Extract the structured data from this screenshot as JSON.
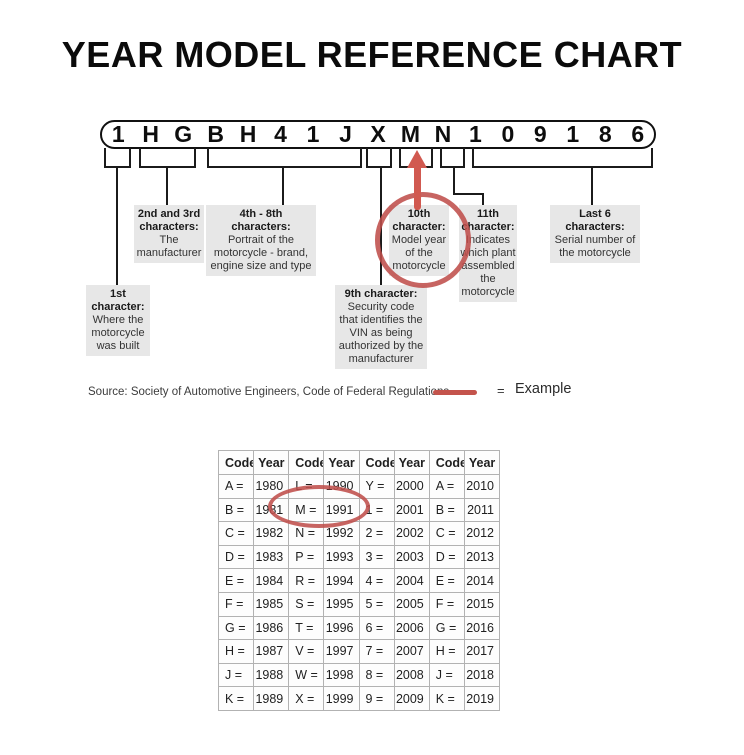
{
  "title": "YEAR MODEL REFERENCE CHART",
  "vin": {
    "chars": [
      "1",
      "H",
      "G",
      "B",
      "H",
      "4",
      "1",
      "J",
      "X",
      "M",
      "N",
      "1",
      "0",
      "9",
      "1",
      "8",
      "6"
    ]
  },
  "callouts": [
    {
      "id": "first-character",
      "heading": "1st\ncharacter:",
      "body": "Where the\nmotorcycle\nwas built"
    },
    {
      "id": "second-third",
      "heading": "2nd and 3rd\ncharacters:",
      "body": "The\nmanufacturer"
    },
    {
      "id": "fourth-eighth",
      "heading": "4th - 8th\ncharacters:",
      "body": "Portrait of the\nmotorcycle - brand,\nengine size and type"
    },
    {
      "id": "ninth-character",
      "heading": "9th character:",
      "body": "Security code\nthat identifies the\nVIN as being\nauthorized by the\nmanufacturer"
    },
    {
      "id": "tenth-character",
      "heading": "10th\ncharacter:",
      "body": "Model year\nof the\nmotorcycle"
    },
    {
      "id": "eleventh-character",
      "heading": "11th\ncharacter:",
      "body": "Indicates\nwhich plant\nassembled\nthe\nmotorcycle"
    },
    {
      "id": "last-six",
      "heading": "Last 6\ncharacters:",
      "body": "Serial number of\nthe motorcycle"
    }
  ],
  "source": "Source:  Society of Automotive Engineers, Code of Federal Regulations",
  "legend": {
    "marker": "red-line-icon",
    "equals_sign": "=",
    "label": "Example"
  },
  "year_table": {
    "headers": [
      "Code",
      "Year",
      "Code",
      "Year",
      "Code",
      "Year",
      "Code",
      "Year"
    ],
    "rows": [
      [
        "A =",
        "1980",
        "L =",
        "1990",
        "Y =",
        "2000",
        "A =",
        "2010"
      ],
      [
        "B =",
        "1981",
        "M =",
        "1991",
        "1 =",
        "2001",
        "B =",
        "2011"
      ],
      [
        "C =",
        "1982",
        "N =",
        "1992",
        "2 =",
        "2002",
        "C =",
        "2012"
      ],
      [
        "D =",
        "1983",
        "P =",
        "1993",
        "3 =",
        "2003",
        "D =",
        "2013"
      ],
      [
        "E =",
        "1984",
        "R =",
        "1994",
        "4 =",
        "2004",
        "E =",
        "2014"
      ],
      [
        "F =",
        "1985",
        "S =",
        "1995",
        "5 =",
        "2005",
        "F =",
        "2015"
      ],
      [
        "G =",
        "1986",
        "T =",
        "1996",
        "6 =",
        "2006",
        "G =",
        "2016"
      ],
      [
        "H =",
        "1987",
        "V =",
        "1997",
        "7 =",
        "2007",
        "H =",
        "2017"
      ],
      [
        "J =",
        "1988",
        "W =",
        "1998",
        "8 =",
        "2008",
        "J =",
        "2018"
      ],
      [
        "K =",
        "1989",
        "X =",
        "1999",
        "9 =",
        "2009",
        "K =",
        "2019"
      ]
    ],
    "highlighted_entry": "M = 1991"
  },
  "highlighted_vin_char": "M",
  "colors": {
    "example_red": "#bf4f4b",
    "callout_bg": "#e7e7e7",
    "line_black": "#1b1b1b"
  }
}
